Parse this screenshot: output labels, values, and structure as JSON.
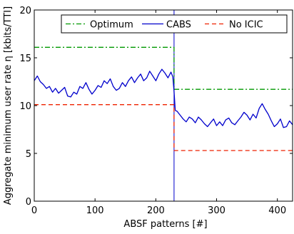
{
  "chart_data": {
    "type": "line",
    "title": "",
    "xlabel": "ABSF patterns [#]",
    "ylabel": "Aggregate minimum user rate η [kbits/TTI]",
    "xlim": [
      0,
      425
    ],
    "ylim": [
      0,
      20
    ],
    "xticks": [
      0,
      100,
      200,
      300,
      400
    ],
    "yticks": [
      0,
      5,
      10,
      15,
      20
    ],
    "grid": false,
    "legend_position": "top",
    "vline": {
      "x": 230,
      "color": "#0000cc"
    },
    "series": [
      {
        "name": "Optimum",
        "style": "dash-dot",
        "color": "#009900",
        "x": [
          0,
          230,
          230,
          425
        ],
        "y": [
          16.1,
          16.1,
          11.7,
          11.7
        ]
      },
      {
        "name": "CABS",
        "style": "solid",
        "color": "#0000cc",
        "x": [
          0,
          5,
          10,
          15,
          20,
          25,
          30,
          35,
          40,
          45,
          50,
          55,
          60,
          65,
          70,
          75,
          80,
          85,
          90,
          95,
          100,
          105,
          110,
          115,
          120,
          125,
          130,
          135,
          140,
          145,
          150,
          155,
          160,
          165,
          170,
          175,
          180,
          185,
          190,
          195,
          200,
          205,
          210,
          215,
          220,
          225,
          228,
          230,
          232,
          235,
          240,
          245,
          250,
          255,
          260,
          265,
          270,
          275,
          280,
          285,
          290,
          295,
          300,
          305,
          310,
          315,
          320,
          325,
          330,
          335,
          340,
          345,
          350,
          355,
          360,
          365,
          370,
          375,
          380,
          385,
          390,
          395,
          400,
          405,
          410,
          415,
          420,
          425
        ],
        "y": [
          12.6,
          13.1,
          12.5,
          12.2,
          11.8,
          12.0,
          11.4,
          11.8,
          11.3,
          11.6,
          11.9,
          11.0,
          10.9,
          11.4,
          11.2,
          12.0,
          11.8,
          12.4,
          11.7,
          11.2,
          11.6,
          12.1,
          11.9,
          12.6,
          12.3,
          12.8,
          12.0,
          11.6,
          11.8,
          12.4,
          12.0,
          12.6,
          13.0,
          12.4,
          12.9,
          13.3,
          12.6,
          12.9,
          13.6,
          13.1,
          12.6,
          13.3,
          13.8,
          13.4,
          12.9,
          13.5,
          13.0,
          11.5,
          9.5,
          9.4,
          9.0,
          8.6,
          8.3,
          8.8,
          8.6,
          8.2,
          8.8,
          8.5,
          8.1,
          7.8,
          8.2,
          8.6,
          7.9,
          8.3,
          7.9,
          8.5,
          8.7,
          8.2,
          8.0,
          8.4,
          8.8,
          9.3,
          9.0,
          8.5,
          9.1,
          8.7,
          9.7,
          10.2,
          9.6,
          9.1,
          8.4,
          7.8,
          8.1,
          8.6,
          7.7,
          7.8,
          8.4,
          8.0
        ]
      },
      {
        "name": "No ICIC",
        "style": "dashed",
        "color": "#ee2200",
        "x": [
          0,
          230,
          230,
          425
        ],
        "y": [
          10.1,
          10.1,
          5.3,
          5.3
        ]
      }
    ]
  }
}
